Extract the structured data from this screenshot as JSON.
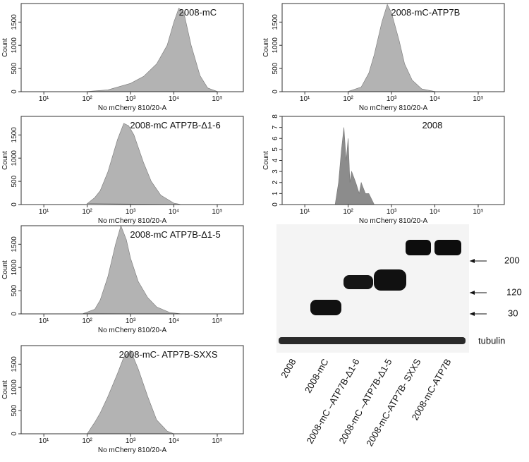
{
  "chart_data": [
    {
      "type": "area",
      "annotation": "2008-mC",
      "xlabel": "No mCherry 810/20-A",
      "ylabel": "Count",
      "xscale": "log",
      "color": "#b3b3b3",
      "x": [
        100,
        300,
        1000,
        2000,
        4000,
        7000,
        10000,
        13000,
        17000,
        25000,
        40000,
        60000,
        100000
      ],
      "values": [
        5,
        40,
        180,
        330,
        600,
        1000,
        1500,
        1800,
        1700,
        1000,
        350,
        80,
        5
      ],
      "xlim": [
        3,
        400000
      ],
      "ylim": [
        0,
        1900
      ],
      "xticks": [
        {
          "value": 10,
          "label": "10¹"
        },
        {
          "value": 100,
          "label": "10²"
        },
        {
          "value": 1000,
          "label": "10³"
        },
        {
          "value": 10000,
          "label": "10⁴"
        },
        {
          "value": 100000,
          "label": "10⁵"
        }
      ],
      "yticks": [
        0,
        500,
        1000,
        1500
      ]
    },
    {
      "type": "area",
      "annotation": "2008-mC-ATP7B",
      "xlabel": "No mCherry 810/20-A",
      "ylabel": "Count",
      "xscale": "log",
      "color": "#b3b3b3",
      "x": [
        100,
        200,
        300,
        400,
        600,
        800,
        1000,
        1500,
        2000,
        3000,
        5000,
        10000
      ],
      "values": [
        5,
        100,
        400,
        800,
        1500,
        1880,
        1700,
        1100,
        600,
        250,
        60,
        5
      ],
      "xlim": [
        3,
        400000
      ],
      "ylim": [
        0,
        1900
      ],
      "xticks": [
        {
          "value": 10,
          "label": "10¹"
        },
        {
          "value": 100,
          "label": "10²"
        },
        {
          "value": 1000,
          "label": "10³"
        },
        {
          "value": 10000,
          "label": "10⁴"
        },
        {
          "value": 100000,
          "label": "10⁵"
        }
      ],
      "yticks": [
        0,
        500,
        1000,
        1500
      ]
    },
    {
      "type": "area",
      "annotation": "2008-mC ATP7B-Δ1-6",
      "xlabel": "No mCherry 810/20-A",
      "ylabel": "Count",
      "xscale": "log",
      "color": "#b3b3b3",
      "x": [
        100,
        150,
        200,
        300,
        500,
        700,
        900,
        1200,
        2000,
        3000,
        5000,
        10000,
        15000
      ],
      "values": [
        20,
        150,
        300,
        700,
        1400,
        1750,
        1700,
        1500,
        900,
        500,
        200,
        30,
        0
      ],
      "xlim": [
        3,
        400000
      ],
      "ylim": [
        0,
        1900
      ],
      "xticks": [
        {
          "value": 10,
          "label": "10¹"
        },
        {
          "value": 100,
          "label": "10²"
        },
        {
          "value": 1000,
          "label": "10³"
        },
        {
          "value": 10000,
          "label": "10⁴"
        },
        {
          "value": 100000,
          "label": "10⁵"
        }
      ],
      "yticks": [
        0,
        500,
        1000,
        1500
      ]
    },
    {
      "type": "area",
      "annotation": "2008",
      "xlabel": "No mCherry 810/20-A",
      "ylabel": "Count",
      "xscale": "log",
      "color": "#8c8c8c",
      "x": [
        50,
        60,
        70,
        80,
        90,
        100,
        110,
        120,
        150,
        180,
        200,
        250,
        300,
        400,
        500
      ],
      "values": [
        0,
        2,
        5,
        7,
        4,
        6,
        2,
        3,
        2,
        1,
        2,
        1,
        1,
        0,
        0
      ],
      "xlim": [
        3,
        400000
      ],
      "ylim": [
        0,
        8
      ],
      "xticks": [
        {
          "value": 10,
          "label": "10¹"
        },
        {
          "value": 100,
          "label": "10²"
        },
        {
          "value": 1000,
          "label": "10³"
        },
        {
          "value": 10000,
          "label": "10⁴"
        },
        {
          "value": 100000,
          "label": "10⁵"
        }
      ],
      "yticks": [
        0,
        1,
        2,
        3,
        4,
        5,
        6,
        7,
        8
      ]
    },
    {
      "type": "area",
      "annotation": "2008-mC ATP7B-Δ1-5",
      "xlabel": "No mCherry 810/20-A",
      "ylabel": "Count",
      "xscale": "log",
      "color": "#b3b3b3",
      "x": [
        80,
        150,
        200,
        300,
        450,
        600,
        800,
        1000,
        1500,
        2500,
        4000,
        8000,
        15000
      ],
      "values": [
        5,
        100,
        300,
        800,
        1500,
        1900,
        1600,
        1200,
        700,
        350,
        150,
        30,
        0
      ],
      "xlim": [
        3,
        400000
      ],
      "ylim": [
        0,
        1900
      ],
      "xticks": [
        {
          "value": 10,
          "label": "10¹"
        },
        {
          "value": 100,
          "label": "10²"
        },
        {
          "value": 1000,
          "label": "10³"
        },
        {
          "value": 10000,
          "label": "10⁴"
        },
        {
          "value": 100000,
          "label": "10⁵"
        }
      ],
      "yticks": [
        0,
        500,
        1000,
        1500
      ]
    },
    {
      "type": "area",
      "annotation": "2008-mC- ATP7B-SXXS",
      "xlabel": "No mCherry 810/20-A",
      "ylabel": "Count",
      "xscale": "log",
      "color": "#b3b3b3",
      "x": [
        100,
        150,
        200,
        300,
        500,
        700,
        1000,
        1500,
        2500,
        4000,
        7000,
        10000
      ],
      "values": [
        0,
        250,
        450,
        800,
        1300,
        1650,
        1800,
        1400,
        800,
        300,
        60,
        0
      ],
      "xlim": [
        3,
        400000
      ],
      "ylim": [
        0,
        1900
      ],
      "xticks": [
        {
          "value": 10,
          "label": "10¹"
        },
        {
          "value": 100,
          "label": "10²"
        },
        {
          "value": 1000,
          "label": "10³"
        },
        {
          "value": 10000,
          "label": "10⁴"
        },
        {
          "value": 100000,
          "label": "10⁵"
        }
      ],
      "yticks": [
        0,
        500,
        1000,
        1500
      ]
    }
  ],
  "blot": {
    "lanes": [
      "2008",
      "2008-mC",
      "2008-mC –ATP7B-Δ1-6",
      "2008-mC –ATP7B-Δ1-5",
      "2008-mC-ATP7B- SXXS",
      "2008-mC-ATP7B"
    ],
    "markers": [
      "200",
      "120",
      "30"
    ],
    "loading_label": "tubulin"
  }
}
